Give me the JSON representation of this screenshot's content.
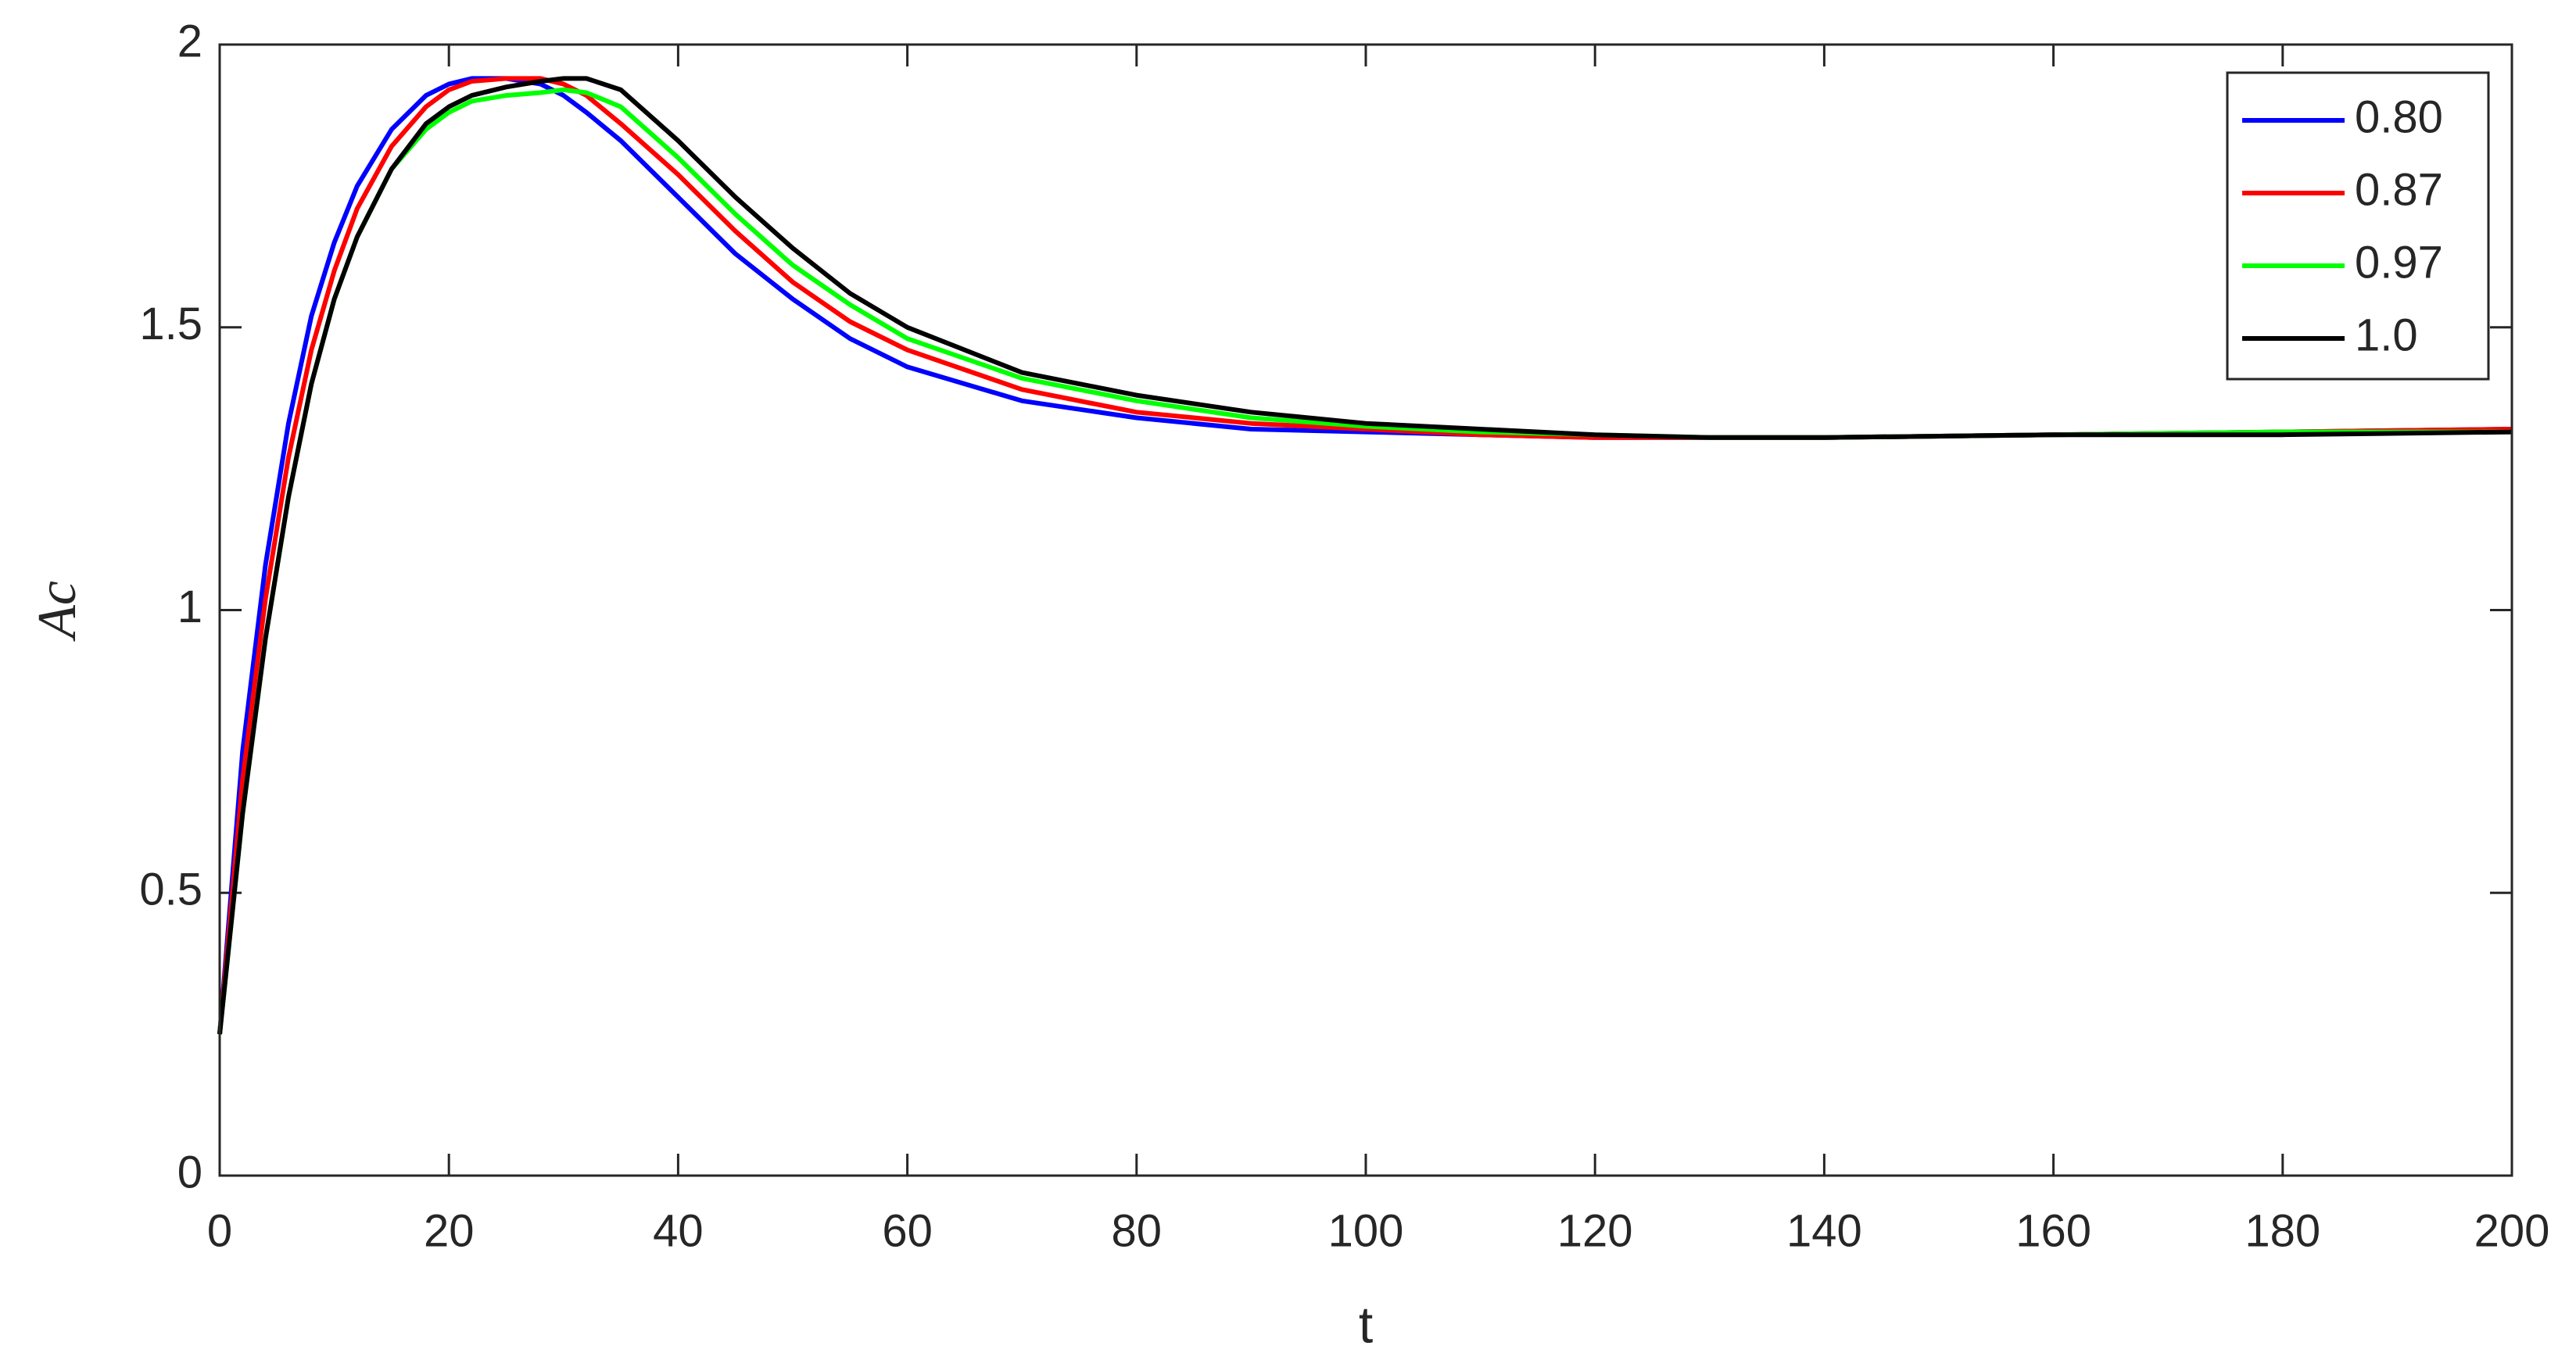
{
  "chart_data": {
    "type": "line",
    "x_label": "t",
    "y_label": "Ac",
    "x": [
      0,
      2,
      4,
      6,
      8,
      10,
      12,
      15,
      18,
      20,
      22,
      25,
      28,
      30,
      32,
      35,
      40,
      45,
      50,
      55,
      60,
      70,
      80,
      90,
      100,
      110,
      120,
      130,
      140,
      160,
      180,
      200
    ],
    "series": [
      {
        "name": "0.80",
        "color": "#0000ff",
        "values": [
          0.25,
          0.75,
          1.08,
          1.33,
          1.52,
          1.65,
          1.75,
          1.85,
          1.91,
          1.93,
          1.94,
          1.94,
          1.93,
          1.91,
          1.88,
          1.83,
          1.73,
          1.63,
          1.55,
          1.48,
          1.43,
          1.37,
          1.34,
          1.32,
          1.315,
          1.31,
          1.305,
          1.305,
          1.305,
          1.31,
          1.315,
          1.32
        ]
      },
      {
        "name": "0.87",
        "color": "#ff0000",
        "values": [
          0.25,
          0.7,
          1.02,
          1.27,
          1.46,
          1.6,
          1.71,
          1.82,
          1.89,
          1.92,
          1.935,
          1.94,
          1.94,
          1.93,
          1.91,
          1.86,
          1.77,
          1.67,
          1.58,
          1.51,
          1.46,
          1.39,
          1.35,
          1.33,
          1.32,
          1.31,
          1.305,
          1.305,
          1.305,
          1.31,
          1.315,
          1.32
        ]
      },
      {
        "name": "0.97",
        "color": "#00ff00",
        "values": [
          0.25,
          0.64,
          0.95,
          1.2,
          1.4,
          1.55,
          1.66,
          1.78,
          1.85,
          1.88,
          1.9,
          1.91,
          1.915,
          1.92,
          1.915,
          1.89,
          1.8,
          1.7,
          1.61,
          1.54,
          1.48,
          1.41,
          1.37,
          1.34,
          1.325,
          1.315,
          1.31,
          1.305,
          1.305,
          1.31,
          1.315,
          1.315
        ]
      },
      {
        "name": "1.0",
        "color": "#000000",
        "values": [
          0.25,
          0.64,
          0.95,
          1.2,
          1.4,
          1.55,
          1.66,
          1.78,
          1.86,
          1.89,
          1.91,
          1.925,
          1.935,
          1.94,
          1.94,
          1.92,
          1.83,
          1.73,
          1.64,
          1.56,
          1.5,
          1.42,
          1.38,
          1.35,
          1.33,
          1.32,
          1.31,
          1.305,
          1.305,
          1.31,
          1.31,
          1.315
        ]
      }
    ],
    "xlim": [
      0,
      200
    ],
    "xticks": [
      0,
      20,
      40,
      60,
      80,
      100,
      120,
      140,
      160,
      180,
      200
    ],
    "ylim": [
      0,
      2
    ],
    "yticks": [
      0,
      0.5,
      1,
      1.5,
      2
    ],
    "legend": "upper right",
    "grid": false
  }
}
